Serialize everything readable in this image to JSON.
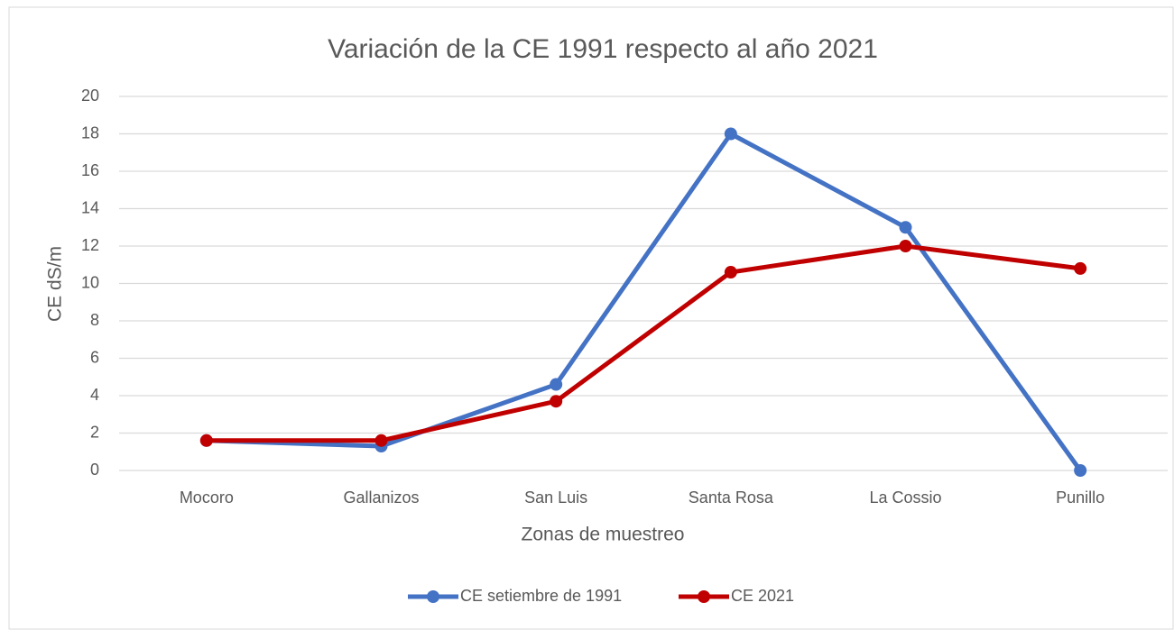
{
  "chart_data": {
    "type": "line",
    "title": "Variación de la CE 1991 respecto al año 2021",
    "x_label": "Zonas de muestreo",
    "y_label": "CE dS/m",
    "categories": [
      "Mocoro",
      "Gallanizos",
      "San Luis",
      "Santa Rosa",
      "La Cossio",
      "Punillo"
    ],
    "series": [
      {
        "name": "CE setiembre de 1991",
        "color": "#4472c4",
        "values": [
          1.6,
          1.3,
          4.6,
          18,
          13,
          0
        ]
      },
      {
        "name": "CE 2021",
        "color": "#c00000",
        "values": [
          1.6,
          1.6,
          3.7,
          10.6,
          12,
          10.8
        ]
      }
    ],
    "ylim": [
      0,
      20
    ],
    "yticks": [
      0,
      2,
      4,
      6,
      8,
      10,
      12,
      14,
      16,
      18,
      20
    ],
    "grid": true,
    "legend": "bottom"
  }
}
